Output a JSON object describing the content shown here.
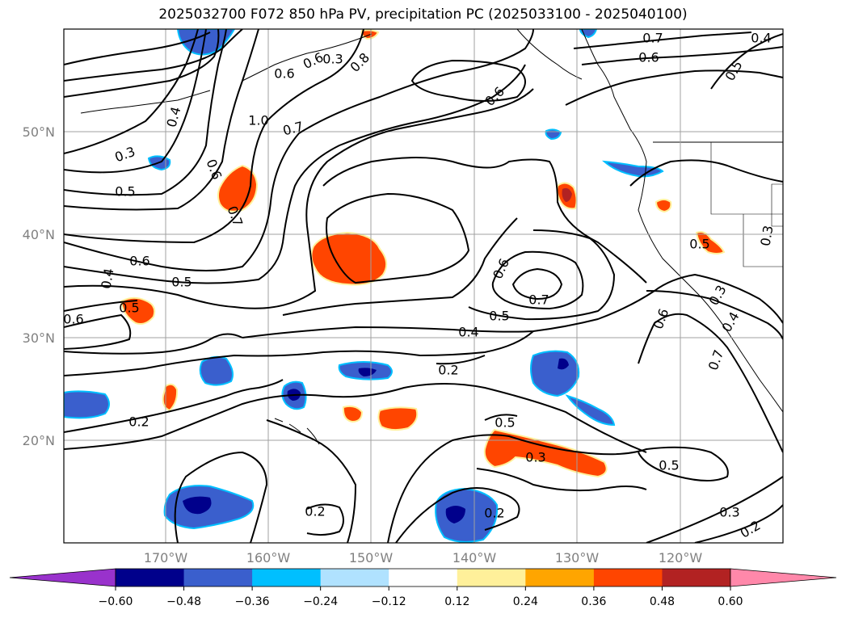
{
  "title": "2025032700 F072 850 hPa PV, precipitation PC (2025033100 - 2025040100)",
  "lat_labels": [
    "50°N",
    "40°N",
    "30°N",
    "20°N"
  ],
  "lon_labels": [
    "170°W",
    "160°W",
    "150°W",
    "140°W",
    "130°W",
    "120°W"
  ],
  "contour_labels": [
    "0.7",
    "0.6",
    "0.4",
    "0.5",
    "1.0",
    "0.7",
    "0.3",
    "0.6",
    "0.8",
    "0.6",
    "0.4",
    "0.6",
    "0.5",
    "0.7",
    "0.6",
    "0.5",
    "0.6",
    "0.5",
    "0.6",
    "0.7",
    "0.5",
    "0.4",
    "0.2",
    "0.2",
    "0.5",
    "0.3",
    "0.5",
    "0.2",
    "0.2",
    "0.3",
    "0.2",
    "0.6",
    "0.7",
    "0.3",
    "0.4",
    "0.3",
    "0.5",
    "0.4",
    "0.6",
    "0.3"
  ],
  "colorbar": {
    "ticks": [
      "−0.60",
      "−0.48",
      "−0.36",
      "−0.24",
      "−0.12",
      "0.12",
      "0.24",
      "0.36",
      "0.48",
      "0.60"
    ],
    "colors": [
      "#9932cc",
      "#00008b",
      "#3a5fcd",
      "#00bfff",
      "#b0e2ff",
      "#ffffff",
      "#fff09a",
      "#ffa500",
      "#ff4500",
      "#b22222",
      "#ff88aa"
    ]
  },
  "shading_colors": {
    "orange": "#ff4500",
    "orange_edge": "#ffa500",
    "yellow_edge": "#fff09a",
    "blue": "#3a5fcd",
    "blue_edge": "#00bfff",
    "navy": "#00008b",
    "darkred": "#b22222"
  }
}
